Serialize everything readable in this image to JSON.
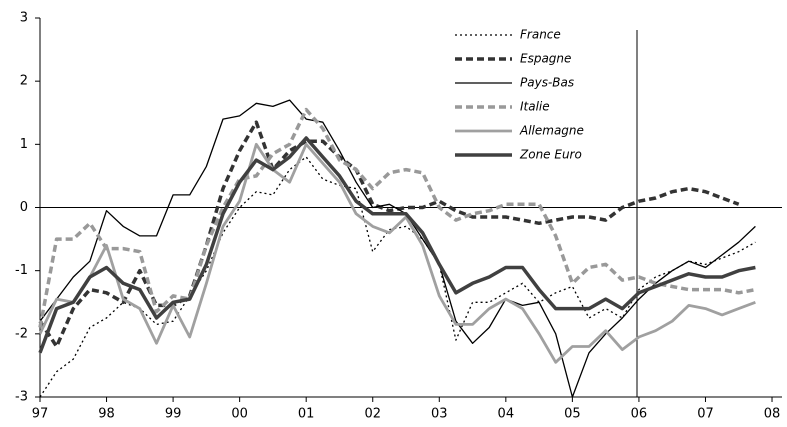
{
  "chart_data": {
    "type": "line",
    "x": [
      1997,
      1997.25,
      1997.5,
      1997.75,
      1998,
      1998.25,
      1998.5,
      1998.75,
      1999,
      1999.25,
      1999.5,
      1999.75,
      2000,
      2000.25,
      2000.5,
      2000.75,
      2001,
      2001.25,
      2001.5,
      2001.75,
      2002,
      2002.25,
      2002.5,
      2002.75,
      2003,
      2003.25,
      2003.5,
      2003.75,
      2004,
      2004.25,
      2004.5,
      2004.75,
      2005,
      2005.25,
      2005.5,
      2005.75,
      2006,
      2006.25,
      2006.5,
      2006.75,
      2007,
      2007.25,
      2007.5,
      2007.75
    ],
    "series": [
      {
        "name": "France",
        "color": "#000000",
        "dash": "dotted",
        "values": [
          -3.0,
          -2.6,
          -2.4,
          -1.9,
          -1.75,
          -1.5,
          -1.6,
          -1.85,
          -1.8,
          -1.4,
          -1.0,
          -0.4,
          0.0,
          0.25,
          0.2,
          0.6,
          0.8,
          0.45,
          0.35,
          0.3,
          -0.7,
          -0.35,
          -0.3,
          -0.5,
          -0.9,
          -2.1,
          -1.5,
          -1.5,
          -1.35,
          -1.2,
          -1.5,
          -1.35,
          -1.25,
          -1.75,
          -1.6,
          -1.75,
          -1.3,
          -1.1,
          -1.0,
          -0.85,
          -0.9,
          -0.8,
          -0.7,
          -0.55
        ]
      },
      {
        "name": "Espagne",
        "color": "#333333",
        "dash": "dashed",
        "values": [
          -1.8,
          -2.2,
          -1.6,
          -1.3,
          -1.35,
          -1.5,
          -1.0,
          -1.55,
          -1.55,
          -1.4,
          -0.6,
          0.3,
          0.9,
          1.35,
          0.6,
          0.9,
          1.05,
          1.05,
          0.8,
          0.6,
          0.05,
          -0.05,
          0.0,
          0.0,
          0.1,
          -0.05,
          -0.15,
          -0.15,
          -0.15,
          -0.2,
          -0.25,
          -0.2,
          -0.15,
          -0.15,
          -0.2,
          0.0,
          0.1,
          0.15,
          0.25,
          0.3,
          0.25,
          0.15,
          0.05,
          null
        ]
      },
      {
        "name": "Pays-Bas",
        "color": "#000000",
        "dash": "solid",
        "values": [
          -1.8,
          -1.45,
          -1.1,
          -0.85,
          -0.05,
          -0.3,
          -0.45,
          -0.45,
          0.2,
          0.2,
          0.65,
          1.4,
          1.45,
          1.65,
          1.6,
          1.7,
          1.4,
          1.35,
          0.9,
          0.4,
          0.0,
          0.05,
          -0.1,
          -0.5,
          -0.9,
          -1.8,
          -2.15,
          -1.9,
          -1.45,
          -1.55,
          -1.5,
          -2.0,
          -3.0,
          -2.3,
          -2.0,
          -1.75,
          -1.45,
          -1.2,
          -1.0,
          -0.85,
          -0.95,
          -0.75,
          -0.55,
          -0.3
        ]
      },
      {
        "name": "Italie",
        "color": "#999999",
        "dash": "dashed",
        "values": [
          -1.9,
          -0.5,
          -0.5,
          -0.25,
          -0.65,
          -0.65,
          -0.7,
          -1.65,
          -1.4,
          -1.45,
          -0.6,
          0.0,
          0.45,
          0.5,
          0.85,
          1.0,
          1.55,
          1.25,
          0.75,
          0.6,
          0.3,
          0.55,
          0.6,
          0.55,
          0.0,
          -0.2,
          -0.1,
          -0.05,
          0.05,
          0.05,
          0.05,
          -0.45,
          -1.2,
          -0.95,
          -0.9,
          -1.15,
          -1.1,
          -1.2,
          -1.25,
          -1.3,
          -1.3,
          -1.3,
          -1.35,
          -1.3
        ]
      },
      {
        "name": "Allemagne",
        "color": "#a0a0a0",
        "dash": "solid",
        "values": [
          -2.0,
          -1.45,
          -1.5,
          -1.1,
          -0.6,
          -1.45,
          -1.6,
          -2.15,
          -1.55,
          -2.05,
          -1.2,
          -0.3,
          0.1,
          1.0,
          0.6,
          0.4,
          1.0,
          0.7,
          0.4,
          -0.1,
          -0.3,
          -0.4,
          -0.15,
          -0.6,
          -1.4,
          -1.85,
          -1.85,
          -1.6,
          -1.45,
          -1.6,
          -2.0,
          -2.45,
          -2.2,
          -2.2,
          -1.95,
          -2.25,
          -2.05,
          -1.95,
          -1.8,
          -1.55,
          -1.6,
          -1.7,
          -1.6,
          -1.5
        ]
      },
      {
        "name": "Zone Euro",
        "color": "#404040",
        "dash": "solid",
        "values": [
          -2.3,
          -1.6,
          -1.5,
          -1.1,
          -0.95,
          -1.2,
          -1.3,
          -1.75,
          -1.5,
          -1.45,
          -0.9,
          -0.1,
          0.4,
          0.75,
          0.6,
          0.8,
          1.1,
          0.8,
          0.5,
          0.1,
          -0.1,
          -0.1,
          -0.1,
          -0.4,
          -0.9,
          -1.35,
          -1.2,
          -1.1,
          -0.95,
          -0.95,
          -1.3,
          -1.6,
          -1.6,
          -1.6,
          -1.45,
          -1.6,
          -1.35,
          -1.25,
          -1.15,
          -1.05,
          -1.1,
          -1.1,
          -1.0,
          -0.95
        ]
      }
    ],
    "xlim": [
      1997,
      2008.15
    ],
    "xticks": [
      {
        "value": 1997,
        "label": "97"
      },
      {
        "value": 1998,
        "label": "98"
      },
      {
        "value": 1999,
        "label": "99"
      },
      {
        "value": 2000,
        "label": "00"
      },
      {
        "value": 2001,
        "label": "01"
      },
      {
        "value": 2002,
        "label": "02"
      },
      {
        "value": 2003,
        "label": "03"
      },
      {
        "value": 2004,
        "label": "04"
      },
      {
        "value": 2005,
        "label": "05"
      },
      {
        "value": 2006,
        "label": "06"
      },
      {
        "value": 2007,
        "label": "07"
      },
      {
        "value": 2008,
        "label": "08"
      }
    ],
    "ylim": [
      -3,
      3
    ],
    "yticks": [
      -3,
      -2,
      -1,
      0,
      1,
      2,
      3
    ]
  }
}
